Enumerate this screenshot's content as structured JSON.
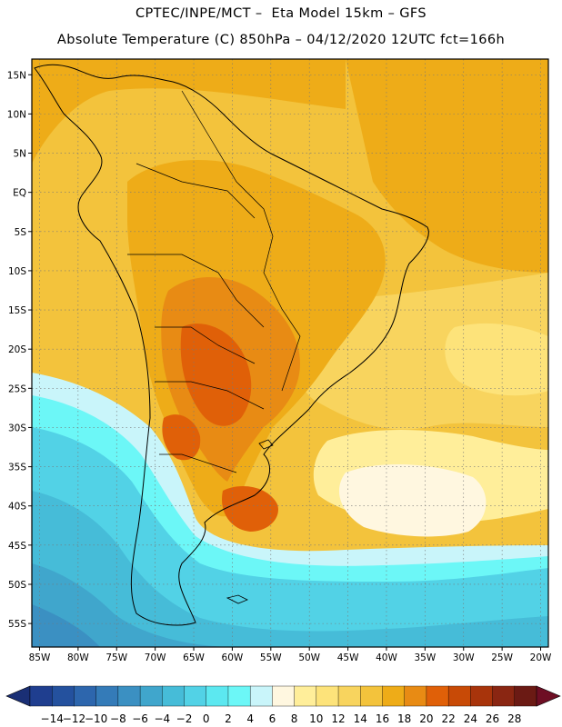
{
  "header": {
    "line1": "CPTEC/INPE/MCT –  Eta Model 15km – GFS",
    "line2": "Absolute Temperature (C) 850hPa – 04/12/2020 12UTC fct=166h"
  },
  "map": {
    "lon_range": [
      -86,
      -19
    ],
    "lat_range": [
      -58,
      17
    ],
    "lat_ticks": [
      {
        "value": 15,
        "label": "15N"
      },
      {
        "value": 10,
        "label": "10N"
      },
      {
        "value": 5,
        "label": "5N"
      },
      {
        "value": 0,
        "label": "EQ"
      },
      {
        "value": -5,
        "label": "5S"
      },
      {
        "value": -10,
        "label": "10S"
      },
      {
        "value": -15,
        "label": "15S"
      },
      {
        "value": -20,
        "label": "20S"
      },
      {
        "value": -25,
        "label": "25S"
      },
      {
        "value": -30,
        "label": "30S"
      },
      {
        "value": -35,
        "label": "35S"
      },
      {
        "value": -40,
        "label": "40S"
      },
      {
        "value": -45,
        "label": "45S"
      },
      {
        "value": -50,
        "label": "50S"
      },
      {
        "value": -55,
        "label": "55S"
      }
    ],
    "lon_ticks": [
      {
        "value": -85,
        "label": "85W"
      },
      {
        "value": -80,
        "label": "80W"
      },
      {
        "value": -75,
        "label": "75W"
      },
      {
        "value": -70,
        "label": "70W"
      },
      {
        "value": -65,
        "label": "65W"
      },
      {
        "value": -60,
        "label": "60W"
      },
      {
        "value": -55,
        "label": "55W"
      },
      {
        "value": -50,
        "label": "50W"
      },
      {
        "value": -45,
        "label": "45W"
      },
      {
        "value": -40,
        "label": "40W"
      },
      {
        "value": -35,
        "label": "35W"
      },
      {
        "value": -30,
        "label": "30W"
      },
      {
        "value": -25,
        "label": "25W"
      },
      {
        "value": -20,
        "label": "20W"
      }
    ]
  },
  "colorbar": {
    "labels": [
      "-14",
      "-12",
      "-10",
      "-8",
      "-6",
      "-4",
      "-2",
      "0",
      "2",
      "4",
      "6",
      "8",
      "10",
      "12",
      "14",
      "16",
      "18",
      "20",
      "22",
      "24",
      "26",
      "28"
    ],
    "colors": [
      "#1f3e8f",
      "#24519e",
      "#2d66ad",
      "#347bb8",
      "#3b90c2",
      "#40a6cc",
      "#46bcd8",
      "#52d2e6",
      "#5ce8f0",
      "#6cf7f7",
      "#c9f5fa",
      "#fff7e0",
      "#ffee9a",
      "#fde37a",
      "#f8d45e",
      "#f3c33c",
      "#eeac18",
      "#e88b14",
      "#e06008",
      "#c84a06",
      "#a8340b",
      "#8a2612",
      "#6b1a14"
    ],
    "under_color": "#1a2f75",
    "over_color": "#6e0e24"
  }
}
